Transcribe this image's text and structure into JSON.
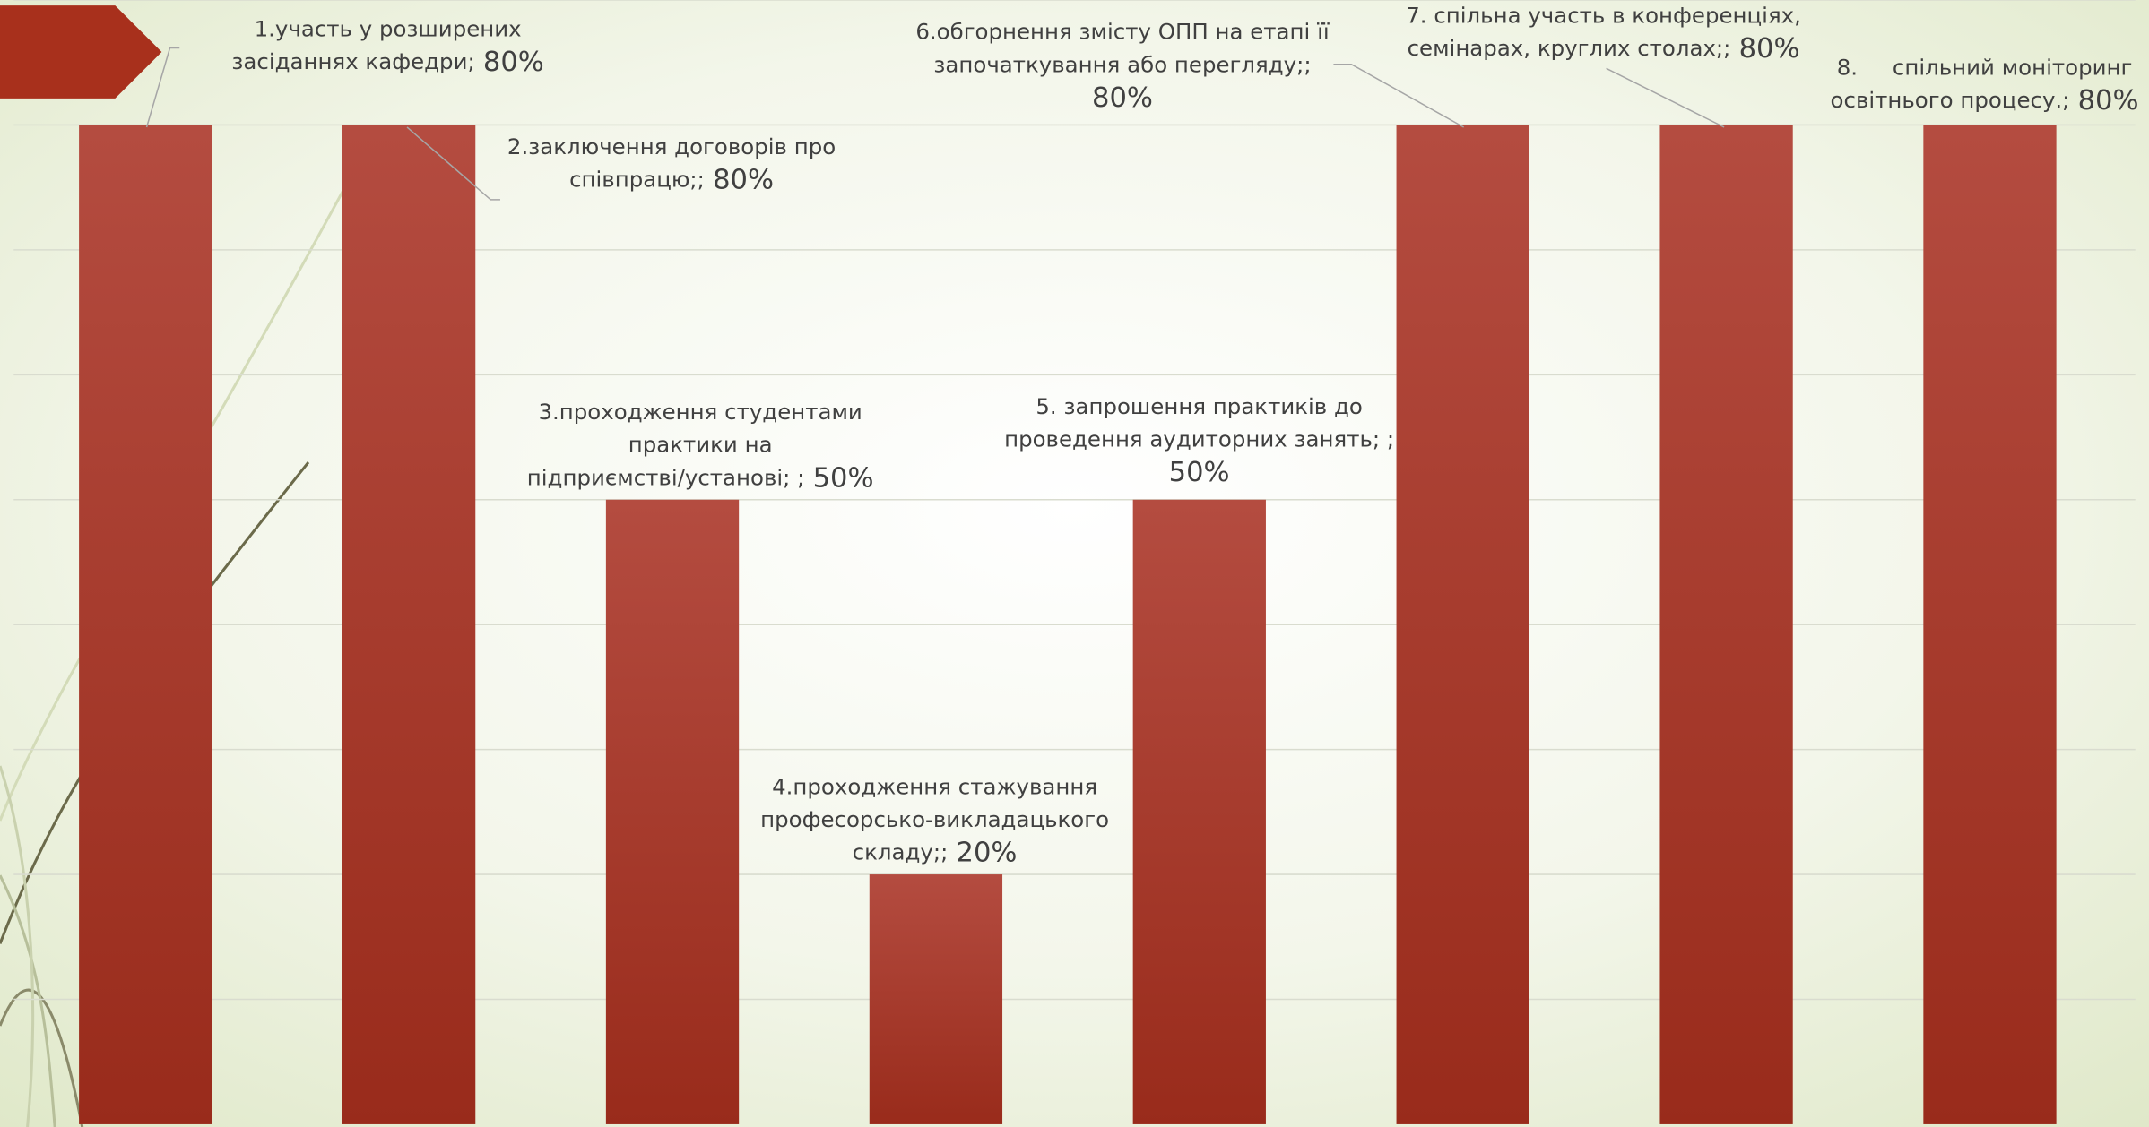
{
  "chart_data": {
    "type": "bar",
    "categories": [
      "1.участь у розширених засіданнях кафедри;",
      "2.заключення договорів про співпрацю;;",
      "3.проходження студентами практики на підприємстві/установі; ;",
      "4.проходження стажування професорсько-викладацького складу;;",
      "5. запрошення практиків до проведення аудиторних занять; ;",
      "6.обгорнення змісту ОПП на етапі її започаткування або перегляду;;",
      "7. спільна участь в конференціях, семінарах, круглих столах;;",
      "8.     спільний моніторинг освітнього процесу.;"
    ],
    "values": [
      80,
      80,
      50,
      20,
      50,
      80,
      80,
      80
    ],
    "value_labels": [
      "80%",
      "80%",
      "50%",
      "20%",
      "50%",
      "80%",
      "80%",
      "80%"
    ],
    "color": "#a8382b",
    "ylim": [
      0,
      90
    ],
    "yticks": [
      10,
      20,
      30,
      40,
      50,
      60,
      70,
      80,
      90
    ],
    "grid": true
  }
}
